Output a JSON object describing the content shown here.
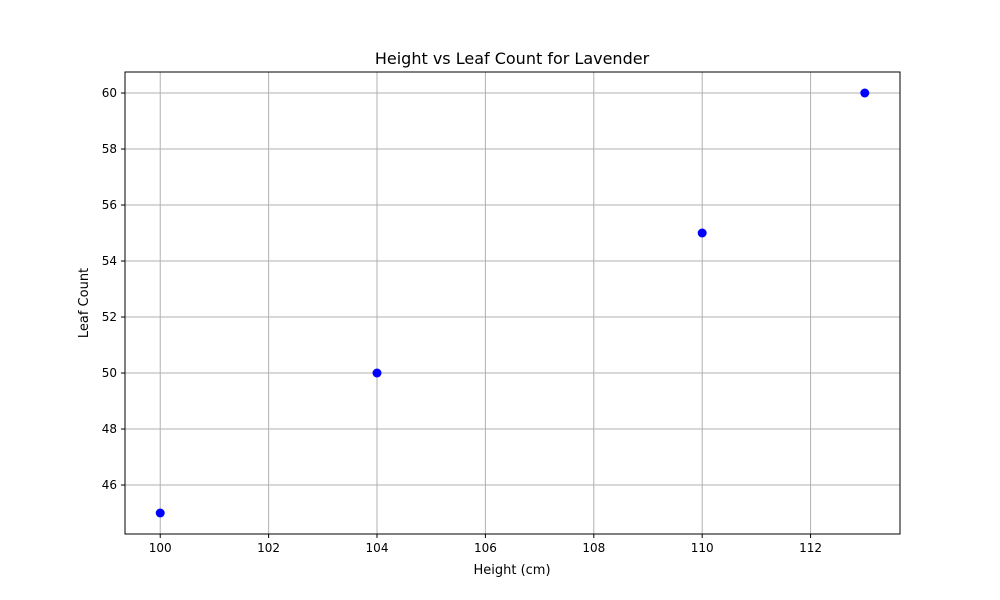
{
  "chart_data": {
    "type": "scatter",
    "title": "Height vs Leaf Count for Lavender",
    "xlabel": "Height (cm)",
    "ylabel": "Leaf Count",
    "xlim": [
      99.35,
      113.65
    ],
    "ylim": [
      44.25,
      60.75
    ],
    "xticks": [
      100,
      102,
      104,
      106,
      108,
      110,
      112
    ],
    "yticks": [
      46,
      48,
      50,
      52,
      54,
      56,
      58,
      60
    ],
    "grid": true,
    "series": [
      {
        "color": "#0000ff",
        "points": [
          {
            "x": 100,
            "y": 45
          },
          {
            "x": 104,
            "y": 50
          },
          {
            "x": 110,
            "y": 55
          },
          {
            "x": 113,
            "y": 60
          }
        ]
      }
    ]
  }
}
